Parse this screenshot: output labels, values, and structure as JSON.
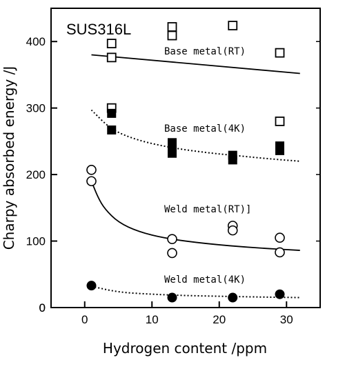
{
  "chart_data": {
    "type": "scatter",
    "title": "SUS316L",
    "xlabel": "Hydrogen content /ppm",
    "ylabel": "Charpy absorbed energy /J",
    "xlim": [
      -5,
      35
    ],
    "ylim": [
      0,
      450
    ],
    "xticks": [
      0,
      10,
      20,
      30
    ],
    "yticks": [
      0,
      100,
      200,
      300,
      400
    ],
    "grid": false,
    "series": [
      {
        "name": "Base metal(RT)",
        "marker": "open-square",
        "points": [
          [
            4,
            397
          ],
          [
            4,
            376
          ],
          [
            13,
            422
          ],
          [
            13,
            409
          ],
          [
            22,
            424
          ],
          [
            29,
            383
          ]
        ],
        "fit": {
          "style": "solid",
          "x": [
            1,
            32
          ],
          "y": [
            380,
            352
          ]
        }
      },
      {
        "name": "Base metal(4K)",
        "marker": "filled-square",
        "open_points": [
          [
            4,
            300
          ],
          [
            29,
            280
          ]
        ],
        "points": [
          [
            4,
            292
          ],
          [
            4,
            267
          ],
          [
            13,
            248
          ],
          [
            13,
            240
          ],
          [
            13,
            232
          ],
          [
            22,
            229
          ],
          [
            22,
            222
          ],
          [
            29,
            243
          ],
          [
            29,
            236
          ]
        ],
        "fit": {
          "style": "dotted",
          "x": [
            1,
            4,
            8,
            13,
            18,
            22,
            27,
            32
          ],
          "y": [
            297,
            267,
            251,
            240,
            233,
            229,
            224,
            220
          ]
        }
      },
      {
        "name": "Weld metal(RT)]",
        "marker": "open-circle",
        "points": [
          [
            1,
            207
          ],
          [
            1,
            190
          ],
          [
            13,
            103
          ],
          [
            13,
            82
          ],
          [
            22,
            123
          ],
          [
            22,
            116
          ],
          [
            29,
            105
          ],
          [
            29,
            83
          ]
        ],
        "fit": {
          "style": "solid",
          "x": [
            1,
            2,
            3,
            5,
            8,
            12,
            18,
            25,
            32
          ],
          "y": [
            190,
            165,
            148,
            128,
            114,
            104,
            96,
            90,
            86
          ]
        }
      },
      {
        "name": "Weld metal(4K)",
        "marker": "filled-circle",
        "points": [
          [
            1,
            33
          ],
          [
            13,
            15
          ],
          [
            22,
            15
          ],
          [
            29,
            20
          ]
        ],
        "fit": {
          "style": "dotted",
          "x": [
            1,
            5,
            10,
            15,
            20,
            25,
            32
          ],
          "y": [
            32,
            23,
            20,
            18,
            17,
            16,
            15
          ]
        }
      }
    ]
  }
}
